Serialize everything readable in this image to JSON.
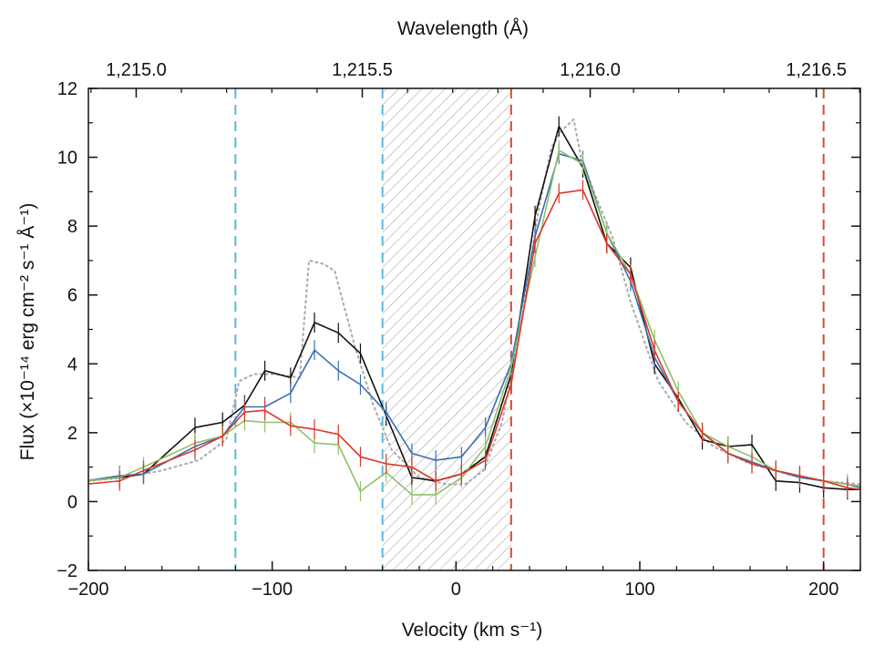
{
  "chart_data": {
    "type": "line",
    "xlabel": "Velocity (km s⁻¹)",
    "ylabel": "Flux (×10⁻¹⁴ erg cm⁻² s⁻¹ Å⁻¹)",
    "top_xlabel": "Wavelength (Å)",
    "xlim": [
      -200,
      220
    ],
    "ylim": [
      -2,
      12
    ],
    "x_ticks": [
      -200,
      -100,
      0,
      100,
      200
    ],
    "x_tick_labels": [
      "−200",
      "−100",
      "0",
      "100",
      "200"
    ],
    "y_ticks": [
      -2,
      0,
      2,
      4,
      6,
      8,
      10,
      12
    ],
    "y_tick_labels": [
      "−2",
      "0",
      "2",
      "4",
      "6",
      "8",
      "10",
      "12"
    ],
    "top_ticks": [
      {
        "label": "1,215.0",
        "velocity": -174
      },
      {
        "label": "1,215.5",
        "velocity": -51
      },
      {
        "label": "1,216.0",
        "velocity": 73
      },
      {
        "label": "1,216.5",
        "velocity": 196
      }
    ],
    "hatched_region": [
      -40,
      30
    ],
    "vertical_lines": [
      {
        "x": -120,
        "color": "#5bb8e0"
      },
      {
        "x": -40,
        "color": "#5bb8e0"
      },
      {
        "x": 30,
        "color": "#d9492e"
      },
      {
        "x": 200,
        "color": "#d9492e"
      }
    ],
    "series": [
      {
        "color": "#aaaaaa",
        "style": "dotted",
        "x": [
          -200,
          -180,
          -160,
          -140,
          -125,
          -118,
          -110,
          -98,
          -85,
          -80,
          -72,
          -66,
          -60,
          -55,
          -45,
          -35,
          -20,
          -5,
          5,
          15,
          25,
          35,
          45,
          52,
          58,
          64,
          68,
          75,
          85,
          95,
          110,
          125,
          140,
          160,
          180,
          200,
          220
        ],
        "y": [
          0.6,
          0.7,
          0.9,
          1.2,
          1.8,
          3.5,
          3.7,
          3.7,
          3.6,
          7.0,
          6.9,
          6.7,
          5.5,
          4.5,
          2.8,
          1.5,
          0.7,
          0.5,
          0.5,
          0.9,
          2.3,
          5.0,
          8.5,
          10.3,
          10.8,
          11.1,
          10.0,
          9.0,
          7.7,
          5.8,
          3.5,
          2.3,
          1.6,
          1.1,
          0.8,
          0.6,
          0.5
        ]
      },
      {
        "color": "#111111",
        "x": [
          -202,
          -183,
          -170,
          -142,
          -127,
          -115,
          -104,
          -90,
          -77,
          -64,
          -52,
          -38,
          -24,
          -11,
          3,
          16,
          30,
          43,
          56,
          69,
          82,
          95,
          108,
          121,
          134,
          148,
          161,
          174,
          187,
          200,
          213,
          220
        ],
        "y": [
          0.6,
          0.7,
          0.8,
          2.15,
          2.3,
          2.8,
          3.8,
          3.6,
          5.2,
          4.9,
          4.3,
          2.5,
          0.7,
          0.6,
          0.8,
          1.3,
          3.7,
          8.3,
          10.9,
          9.7,
          7.5,
          6.8,
          4.0,
          3.0,
          1.8,
          1.6,
          1.65,
          0.6,
          0.55,
          0.4,
          0.35,
          0.35
        ]
      },
      {
        "color": "#3a6eb5",
        "x": [
          -202,
          -183,
          -170,
          -142,
          -127,
          -115,
          -104,
          -90,
          -77,
          -64,
          -52,
          -38,
          -24,
          -11,
          3,
          16,
          30,
          43,
          56,
          69,
          82,
          95,
          108,
          121,
          134,
          148,
          161,
          174,
          187,
          200,
          213,
          220
        ],
        "y": [
          0.6,
          0.75,
          0.8,
          1.6,
          1.9,
          2.75,
          2.75,
          3.15,
          4.4,
          3.8,
          3.4,
          2.6,
          1.4,
          1.2,
          1.3,
          2.15,
          4.0,
          7.7,
          10.1,
          9.9,
          7.8,
          6.4,
          4.2,
          2.9,
          2.0,
          1.4,
          1.15,
          0.9,
          0.7,
          0.6,
          0.5,
          0.4
        ]
      },
      {
        "color": "#8fc06a",
        "x": [
          -202,
          -183,
          -170,
          -142,
          -127,
          -115,
          -104,
          -90,
          -77,
          -64,
          -52,
          -38,
          -24,
          -11,
          3,
          16,
          30,
          43,
          56,
          69,
          82,
          95,
          108,
          121,
          134,
          148,
          161,
          174,
          187,
          200,
          213,
          220
        ],
        "y": [
          0.6,
          0.7,
          1.0,
          1.7,
          1.9,
          2.35,
          2.3,
          2.3,
          1.7,
          1.65,
          0.3,
          0.85,
          0.2,
          0.2,
          0.7,
          1.6,
          3.9,
          7.1,
          10.2,
          9.8,
          7.8,
          6.6,
          4.7,
          3.2,
          2.0,
          1.6,
          1.3,
          0.9,
          0.75,
          0.6,
          0.5,
          0.45
        ]
      },
      {
        "color": "#d9392a",
        "x": [
          -202,
          -183,
          -170,
          -142,
          -127,
          -115,
          -104,
          -90,
          -77,
          -64,
          -52,
          -38,
          -24,
          -11,
          3,
          16,
          30,
          43,
          56,
          69,
          82,
          95,
          108,
          121,
          134,
          148,
          161,
          174,
          187,
          200,
          213,
          220
        ],
        "y": [
          0.5,
          0.6,
          0.9,
          1.5,
          1.9,
          2.6,
          2.65,
          2.2,
          2.1,
          1.95,
          1.3,
          1.1,
          1.0,
          0.6,
          0.8,
          1.2,
          3.4,
          7.5,
          8.95,
          9.05,
          7.5,
          6.6,
          4.4,
          2.9,
          2.0,
          1.4,
          1.1,
          0.9,
          0.75,
          0.6,
          0.4,
          0.35
        ]
      }
    ]
  }
}
